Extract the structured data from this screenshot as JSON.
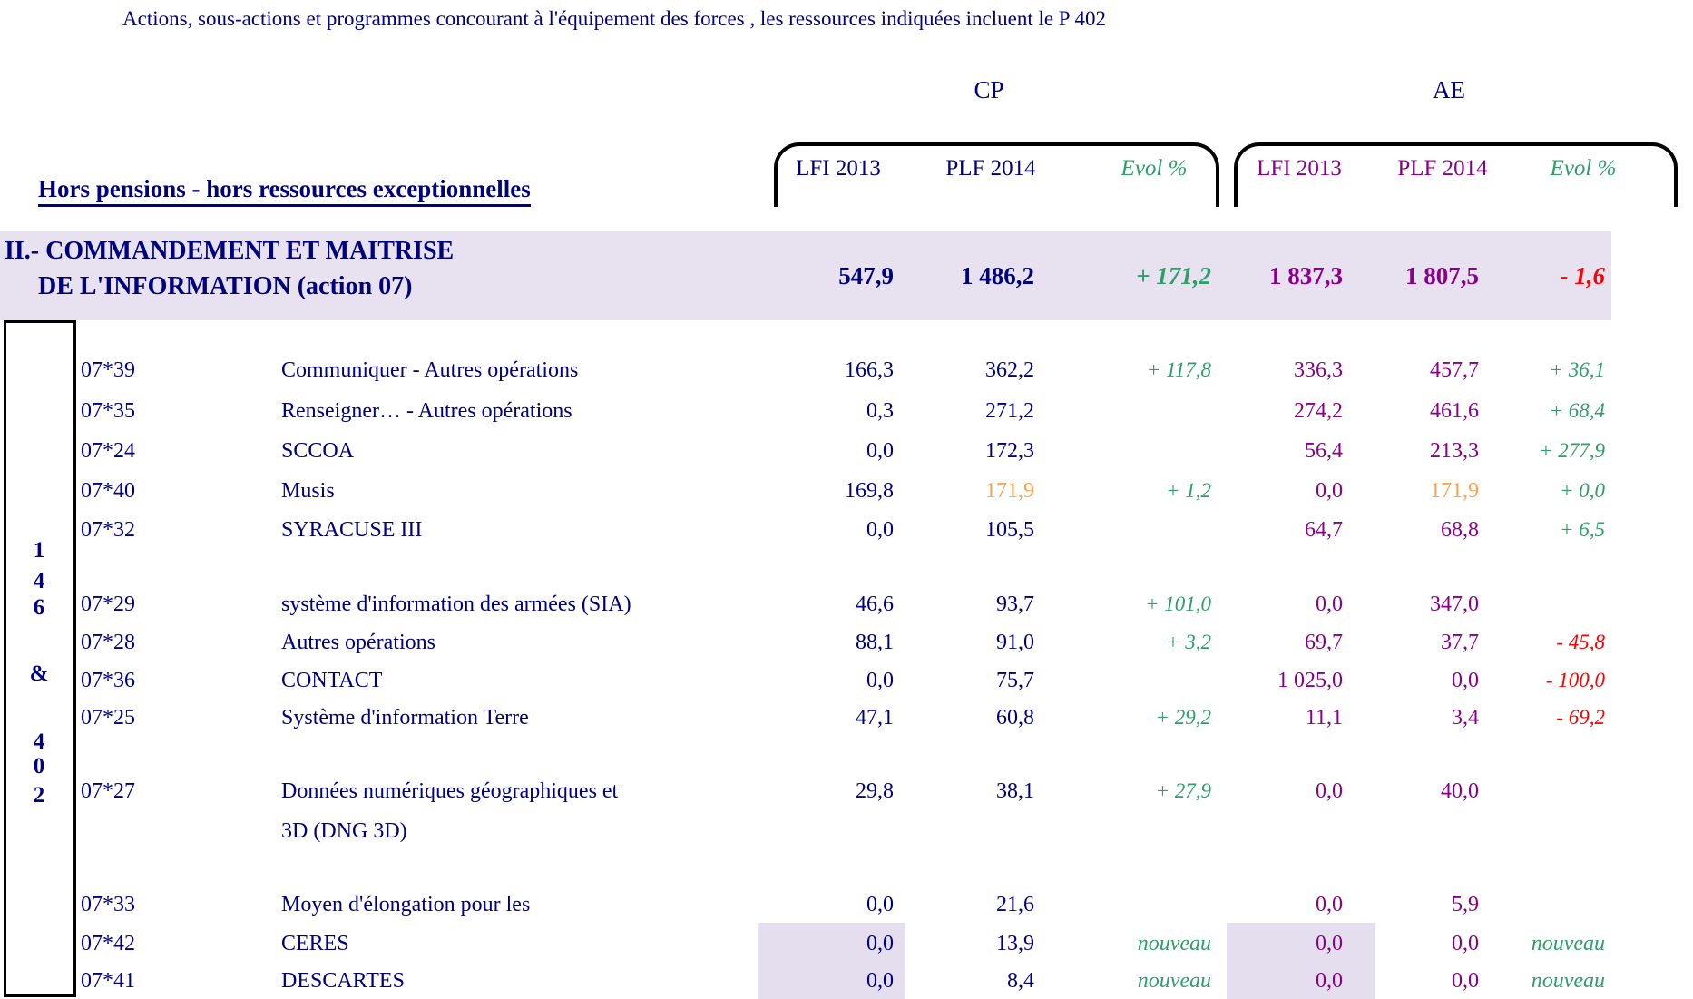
{
  "title": "Actions, sous-actions et programmes concourant à l'équipement des forces , les ressources indiquées incluent  le P 402",
  "header": {
    "cp_label": "CP",
    "ae_label": "AE",
    "scope_label": "Hors pensions - hors ressources exceptionnelles",
    "columns": {
      "cp": {
        "lfi": "LFI 2013",
        "plf": "PLF 2014",
        "evol": "Evol %"
      },
      "ae": {
        "lfi": "LFI 2013",
        "plf": "PLF 2014",
        "evol": "Evol %"
      }
    }
  },
  "summary_row": {
    "title_line1": "II.- COMMANDEMENT ET MAITRISE",
    "title_line2": "DE L'INFORMATION (action 07)",
    "cp_lfi": "547,9",
    "cp_plf": "1 486,2",
    "cp_evol": "+ 171,2",
    "ae_lfi": "1 837,3",
    "ae_plf": "1 807,5",
    "ae_evol": "- 1,6"
  },
  "side_label": {
    "chars": [
      "1",
      "4",
      "6",
      "&",
      "4",
      "0",
      "2"
    ],
    "meaning": "146 & 402"
  },
  "rows": [
    {
      "code": "07*39",
      "label": "Communiquer - Autres opérations",
      "cp_lfi": "166,3",
      "cp_plf": "362,2",
      "cp_evol": "+ 117,8",
      "ae_lfi": "336,3",
      "ae_plf": "457,7",
      "ae_evol": "+ 36,1"
    },
    {
      "code": "07*35",
      "label": "Renseigner… - Autres opérations",
      "cp_lfi": "0,3",
      "cp_plf": "271,2",
      "cp_evol": "",
      "ae_lfi": "274,2",
      "ae_plf": "461,6",
      "ae_evol": "+ 68,4"
    },
    {
      "code": "07*24",
      "label": "SCCOA",
      "cp_lfi": "0,0",
      "cp_plf": "172,3",
      "cp_evol": "",
      "ae_lfi": "56,4",
      "ae_plf": "213,3",
      "ae_evol": "+ 277,9"
    },
    {
      "code": "07*40",
      "label": "Musis",
      "cp_lfi": "169,8",
      "cp_plf": "171,9",
      "cp_evol": "+ 1,2",
      "ae_lfi": "0,0",
      "ae_plf": "171,9",
      "ae_evol": "+ 0,0",
      "orange": [
        "cp_plf",
        "ae_plf"
      ]
    },
    {
      "code": "07*32",
      "label": "SYRACUSE III",
      "cp_lfi": "0,0",
      "cp_plf": "105,5",
      "cp_evol": "",
      "ae_lfi": "64,7",
      "ae_plf": "68,8",
      "ae_evol": "+ 6,5"
    },
    {
      "code": "07*29",
      "label": "système d'information des armées (SIA)",
      "cp_lfi": "46,6",
      "cp_plf": "93,7",
      "cp_evol": "+ 101,0",
      "ae_lfi": "0,0",
      "ae_plf": "347,0",
      "ae_evol": ""
    },
    {
      "code": "07*28",
      "label": "Autres opérations",
      "cp_lfi": "88,1",
      "cp_plf": "91,0",
      "cp_evol": "+ 3,2",
      "ae_lfi": "69,7",
      "ae_plf": "37,7",
      "ae_evol": "- 45,8"
    },
    {
      "code": "07*36",
      "label": "CONTACT",
      "cp_lfi": "0,0",
      "cp_plf": "75,7",
      "cp_evol": "",
      "ae_lfi": "1 025,0",
      "ae_plf": "0,0",
      "ae_evol": "- 100,0"
    },
    {
      "code": "07*25",
      "label": "Système d'information Terre",
      "cp_lfi": "47,1",
      "cp_plf": "60,8",
      "cp_evol": "+ 29,2",
      "ae_lfi": "11,1",
      "ae_plf": "3,4",
      "ae_evol": "- 69,2"
    },
    {
      "code": "07*27",
      "label": "Données numériques géographiques et\n3D (DNG 3D)",
      "cp_lfi": "29,8",
      "cp_plf": "38,1",
      "cp_evol": "+ 27,9",
      "ae_lfi": "0,0",
      "ae_plf": "40,0",
      "ae_evol": ""
    },
    {
      "code": "07*33",
      "label": "Moyen d'élongation pour les",
      "cp_lfi": "0,0",
      "cp_plf": "21,6",
      "cp_evol": "",
      "ae_lfi": "0,0",
      "ae_plf": "5,9",
      "ae_evol": ""
    },
    {
      "code": "07*42",
      "label": "CERES",
      "cp_lfi": "0,0",
      "cp_plf": "13,9",
      "cp_evol": "nouveau",
      "ae_lfi": "0,0",
      "ae_plf": "0,0",
      "ae_evol": "nouveau",
      "accent": true
    },
    {
      "code": "07*41",
      "label": "DESCARTES",
      "cp_lfi": "0,0",
      "cp_plf": "8,4",
      "cp_evol": "nouveau",
      "ae_lfi": "0,0",
      "ae_plf": "0,0",
      "ae_evol": "nouveau",
      "accent": true
    }
  ],
  "colors": {
    "navy": "#00007E",
    "purple": "#8B008B",
    "green": "#2E9E6B",
    "red": "#FF0000",
    "orange": "#FFA14F",
    "lightblue": "#2980C4",
    "lavender": "#E7E1F0",
    "highlight": "#E4DEEE"
  }
}
